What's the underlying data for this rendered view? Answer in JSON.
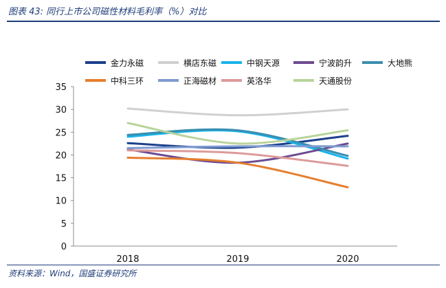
{
  "figure": {
    "title": "图表 43: 同行上市公司磁性材料毛利率（%）对比",
    "source": "资料来源：Wind，国盛证券研究所"
  },
  "chart_data": {
    "type": "line",
    "title": "",
    "xlabel": "",
    "ylabel": "",
    "x": [
      "2018",
      "2019",
      "2020"
    ],
    "ylim": [
      0,
      35
    ],
    "yticks": [
      0,
      5,
      10,
      15,
      20,
      25,
      30,
      35
    ],
    "grid": false,
    "legend_position": "top",
    "smooth": true,
    "series": [
      {
        "name": "金力永磁",
        "color": "#1b3f8b",
        "values": [
          22.6,
          21.6,
          24.2
        ]
      },
      {
        "name": "横店东磁",
        "color": "#d0d0d0",
        "values": [
          30.2,
          28.7,
          30.0
        ]
      },
      {
        "name": "中钢天源",
        "color": "#18b3ea",
        "values": [
          24.0,
          25.2,
          19.2
        ]
      },
      {
        "name": "宁波韵升",
        "color": "#6b4a91",
        "values": [
          21.2,
          18.3,
          22.5
        ]
      },
      {
        "name": "大地熊",
        "color": "#3a8eb0",
        "values": [
          24.4,
          25.4,
          19.8
        ]
      },
      {
        "name": "中科三环",
        "color": "#e57f2e",
        "values": [
          19.4,
          18.3,
          12.9
        ]
      },
      {
        "name": "正海磁材",
        "color": "#7f9bd1",
        "values": [
          21.5,
          21.9,
          21.9
        ]
      },
      {
        "name": "英洛华",
        "color": "#dd9a9a",
        "values": [
          21.0,
          20.4,
          17.6
        ]
      },
      {
        "name": "天通股份",
        "color": "#b9d39a",
        "values": [
          27.0,
          22.5,
          25.4
        ]
      }
    ]
  }
}
